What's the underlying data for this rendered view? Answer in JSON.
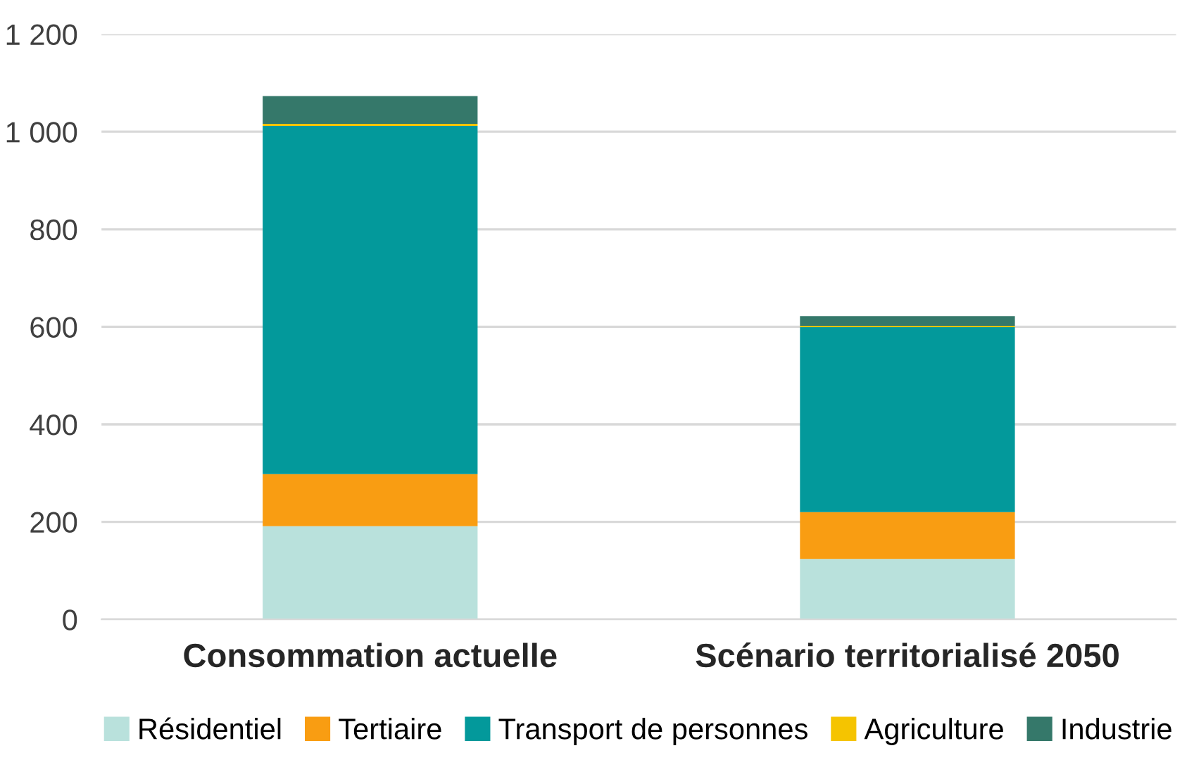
{
  "chart_data": {
    "type": "bar",
    "stacked": true,
    "categories": [
      "Consommation actuelle",
      "Scénario territorialisé 2050"
    ],
    "series": [
      {
        "name": "Résidentiel",
        "color": "#b9e1dc",
        "values": [
          191,
          124
        ]
      },
      {
        "name": "Tertiaire",
        "color": "#f99d12",
        "values": [
          107,
          96
        ]
      },
      {
        "name": "Transport de personnes",
        "color": "#03999b",
        "values": [
          714,
          379
        ]
      },
      {
        "name": "Agriculture",
        "color": "#f5c400",
        "values": [
          4,
          3
        ]
      },
      {
        "name": "Industrie",
        "color": "#35786a",
        "values": [
          57,
          20
        ]
      }
    ],
    "ylim": [
      0,
      1200
    ],
    "yticks": [
      0,
      200,
      400,
      600,
      800,
      {
        "value": 1000,
        "label": "1 000"
      },
      {
        "value": 1200,
        "label": "1 200"
      }
    ],
    "grid": "y",
    "legend": "bottom"
  }
}
